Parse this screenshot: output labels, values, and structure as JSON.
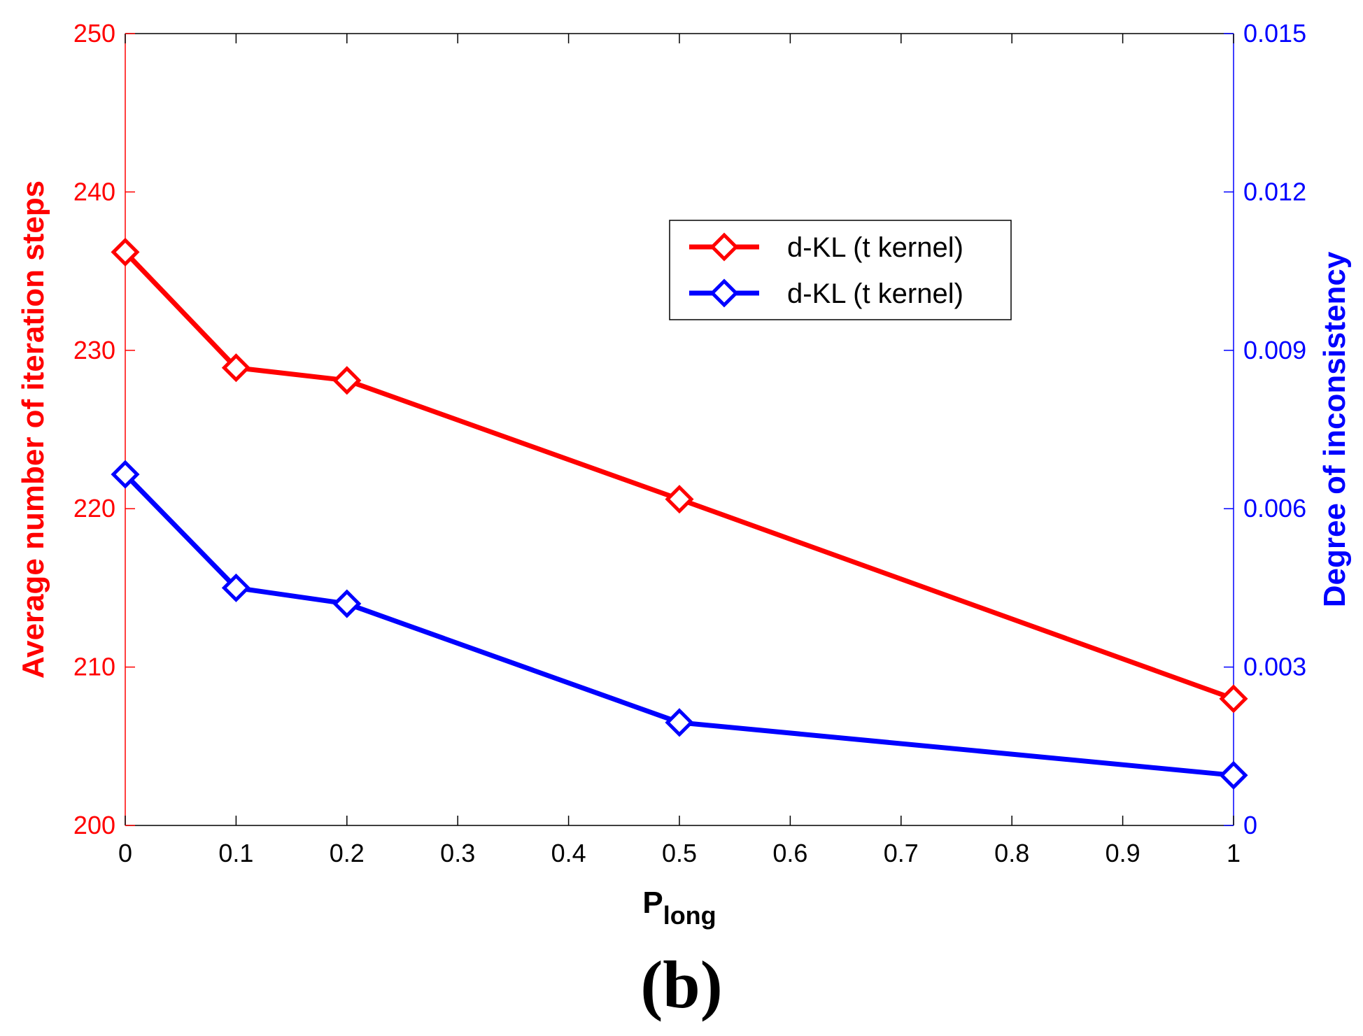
{
  "chart_data": {
    "type": "line",
    "title": "",
    "xlabel": {
      "main": "P",
      "subscript": "long"
    },
    "ylabel_left": "Average number of iteration steps",
    "ylabel_right": "Degree of inconsistency",
    "x": [
      0,
      0.1,
      0.2,
      0.5,
      1
    ],
    "xlim": [
      0,
      1
    ],
    "xticks": [
      0,
      0.1,
      0.2,
      0.3,
      0.4,
      0.5,
      0.6,
      0.7,
      0.8,
      0.9,
      1
    ],
    "xtick_labels": [
      "0",
      "0.1",
      "0.2",
      "0.3",
      "0.4",
      "0.5",
      "0.6",
      "0.7",
      "0.8",
      "0.9",
      "1"
    ],
    "ylim_left": [
      200,
      250
    ],
    "yticks_left": [
      200,
      210,
      220,
      230,
      240,
      250
    ],
    "ytick_labels_left": [
      "200",
      "210",
      "220",
      "230",
      "240",
      "250"
    ],
    "ylim_right": [
      0,
      0.015
    ],
    "yticks_right": [
      0,
      0.003,
      0.006,
      0.009,
      0.012,
      0.015
    ],
    "ytick_labels_right": [
      "0",
      "0.003",
      "0.006",
      "0.009",
      "0.012",
      "0.015"
    ],
    "series": [
      {
        "name": "d-KL (t kernel)",
        "axis": "left",
        "color": "#ff0000",
        "marker": "diamond",
        "values": [
          236.2,
          228.9,
          228.1,
          220.6,
          208.0
        ]
      },
      {
        "name": "d-KL (t kernel)",
        "axis": "right",
        "color": "#0000ff",
        "marker": "diamond",
        "values": [
          0.00665,
          0.0045,
          0.0042,
          0.00195,
          0.00095
        ]
      }
    ],
    "legend_position": "upper-right",
    "grid": false
  },
  "panel_label": "(b)"
}
